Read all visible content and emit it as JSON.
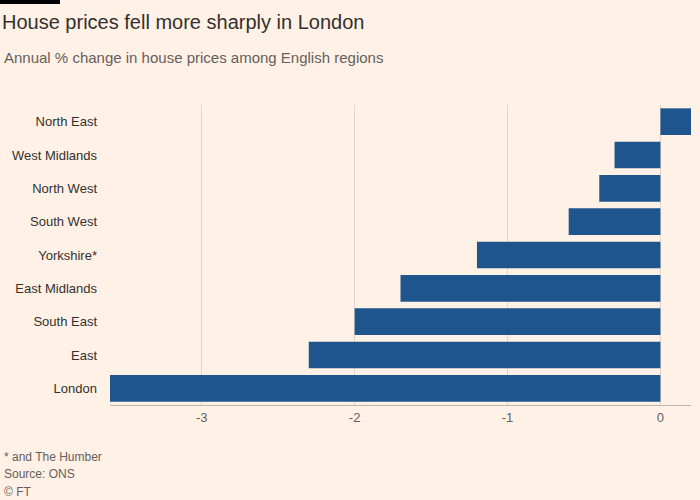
{
  "chart_data": {
    "type": "bar",
    "orientation": "horizontal",
    "title": "House prices fell more sharply in London",
    "subtitle": "Annual % change in house prices among English regions",
    "footnote": "* and The Humber",
    "source": "Source: ONS",
    "credit": "© FT",
    "categories": [
      "North East",
      "West Midlands",
      "North West",
      "South West",
      "Yorkshire*",
      "East Midlands",
      "South East",
      "East",
      "London"
    ],
    "values": [
      0.2,
      -0.3,
      -0.4,
      -0.6,
      -1.2,
      -1.7,
      -2.0,
      -2.3,
      -3.6
    ],
    "color": "#1e558c",
    "xlim": [
      -3.6,
      0.2
    ],
    "xticks": [
      -3,
      -2,
      -1,
      0
    ],
    "grid": true
  }
}
